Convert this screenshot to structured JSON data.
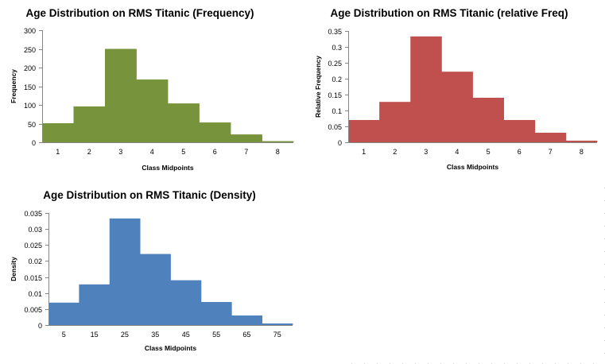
{
  "chart_data": [
    {
      "type": "bar",
      "title": "Age Distribution on RMS Titanic (Frequency)",
      "xlabel": "Class Midpoints",
      "ylabel": "Frequency",
      "categories": [
        "1",
        "2",
        "3",
        "4",
        "5",
        "6",
        "7",
        "8"
      ],
      "values": [
        51,
        96,
        250,
        168,
        104,
        53,
        21,
        3
      ],
      "ylim": [
        0,
        300
      ],
      "yticks": [
        "0",
        "50",
        "100",
        "150",
        "200",
        "250",
        "300"
      ],
      "ytick_values": [
        0,
        50,
        100,
        150,
        200,
        250,
        300
      ],
      "color": "#77933C",
      "grid": false,
      "legend": "none"
    },
    {
      "type": "bar",
      "title": "Age Distribution on RMS Titanic (relative Freq)",
      "xlabel": "Class Midpoints",
      "ylabel": "Relative Frequency",
      "categories": [
        "1",
        "2",
        "3",
        "4",
        "5",
        "6",
        "7",
        "8"
      ],
      "values": [
        0.07,
        0.127,
        0.333,
        0.222,
        0.14,
        0.07,
        0.03,
        0.005
      ],
      "ylim": [
        0,
        0.35
      ],
      "yticks": [
        "0",
        "0.05",
        "0.1",
        "0.15",
        "0.2",
        "0.25",
        "0.3",
        "0.35"
      ],
      "ytick_values": [
        0,
        0.05,
        0.1,
        0.15,
        0.2,
        0.25,
        0.3,
        0.35
      ],
      "color": "#C0504D",
      "grid": false,
      "legend": "none"
    },
    {
      "type": "bar",
      "title": "Age Distribution on RMS Titanic (Density)",
      "xlabel": "Class Midpoints",
      "ylabel": "Density",
      "categories": [
        "5",
        "15",
        "25",
        "35",
        "45",
        "55",
        "65",
        "75"
      ],
      "values": [
        0.007,
        0.0127,
        0.0333,
        0.0222,
        0.014,
        0.0072,
        0.003,
        0.0005
      ],
      "ylim": [
        0,
        0.035
      ],
      "yticks": [
        "0",
        "0.005",
        "0.01",
        "0.015",
        "0.02",
        "0.025",
        "0.03",
        "0.035"
      ],
      "ytick_values": [
        0,
        0.005,
        0.01,
        0.015,
        0.02,
        0.025,
        0.03,
        0.035
      ],
      "color": "#4F81BD",
      "grid": false,
      "legend": "none"
    }
  ]
}
